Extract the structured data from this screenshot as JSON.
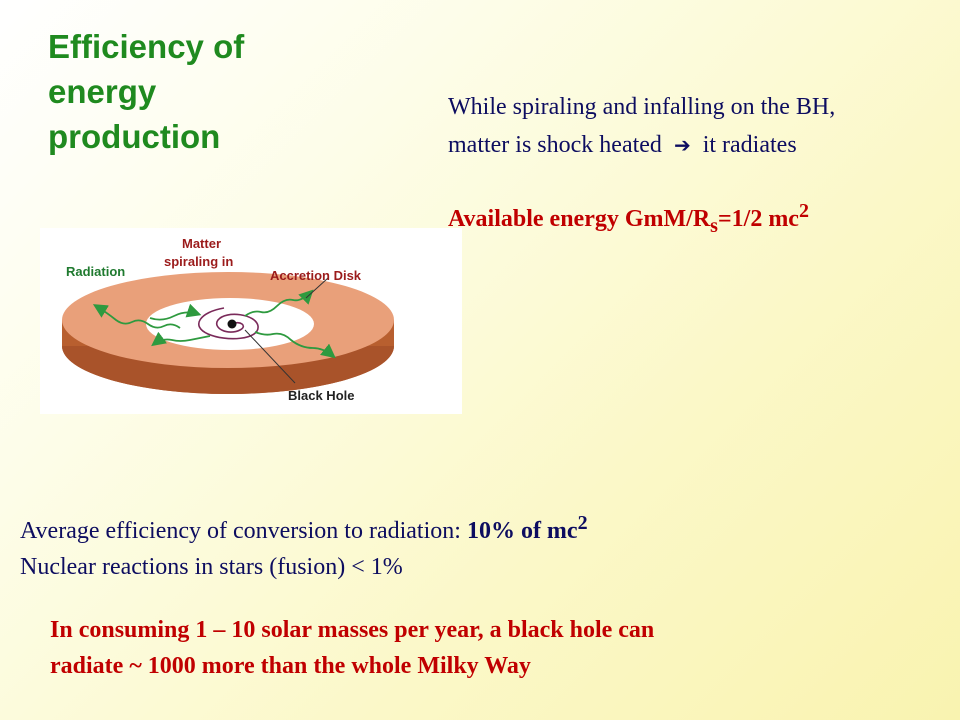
{
  "title": [
    "Efficiency of",
    "energy",
    "production"
  ],
  "intro": {
    "line1": "While spiraling and infalling on the BH,",
    "line2_pre": "matter is shock heated",
    "line2_post": "it radiates"
  },
  "energy": {
    "pre": "Available energy GmM/R",
    "sub": "s",
    "mid": "=1/2 mc",
    "sup": "2"
  },
  "figure": {
    "labels": {
      "radiation": "Radiation",
      "matter_line1": "Matter",
      "matter_line2": "spiraling in",
      "accretion_disk": "Accretion Disk",
      "black_hole": "Black Hole"
    },
    "colors": {
      "disk_top": "#e9a07a",
      "disk_side": "#b85f2f",
      "arrows": "#2e9a3f",
      "label_green": "#1f7a2f",
      "label_red": "#9b1b1b"
    }
  },
  "efficiency": {
    "line1_pre": "Average efficiency of conversion to radiation: ",
    "line1_bold": "10% of mc",
    "line1_sup": "2",
    "line2": "Nuclear reactions in stars (fusion)  < 1%"
  },
  "conclusion": {
    "line1": "In consuming 1 – 10 solar masses per year,  a black hole can",
    "line2": "radiate  ~ 1000 more than the whole Milky Way"
  }
}
